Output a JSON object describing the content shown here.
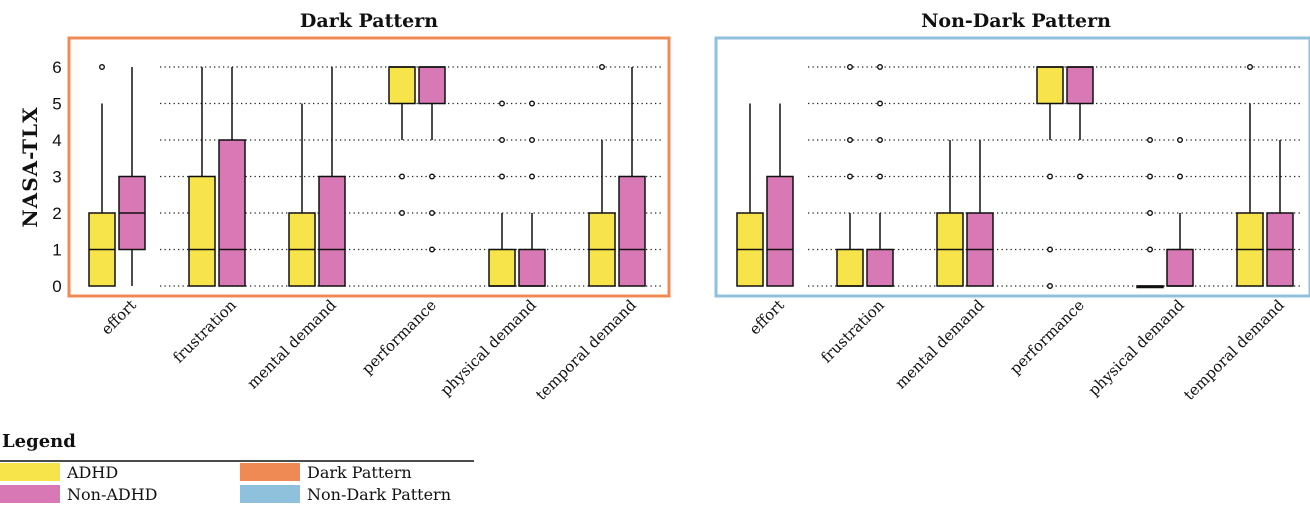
{
  "chart_data": {
    "type": "boxplot",
    "ylabel": "NASA-TLX",
    "ylim": [
      0,
      6
    ],
    "yticks": [
      0,
      1,
      2,
      3,
      4,
      5,
      6
    ],
    "grid": "dotted horizontal",
    "categories": [
      "effort",
      "frustration",
      "mental demand",
      "performance",
      "physical demand",
      "temporal demand"
    ],
    "groups": [
      {
        "name": "ADHD",
        "color": "#f7e44a"
      },
      {
        "name": "Non-ADHD",
        "color": "#d879b6"
      }
    ],
    "panels": [
      {
        "title": "Dark Pattern",
        "frame_color": "#f08a55",
        "boxes": [
          [
            {
              "min": 0,
              "q1": 0,
              "median": 1,
              "q3": 2,
              "max": 5,
              "outliers": [
                6
              ]
            },
            {
              "min": 0,
              "q1": 1,
              "median": 2,
              "q3": 3,
              "max": 6,
              "outliers": []
            }
          ],
          [
            {
              "min": 0,
              "q1": 0,
              "median": 1,
              "q3": 3,
              "max": 6,
              "outliers": []
            },
            {
              "min": 0,
              "q1": 0,
              "median": 1,
              "q3": 4,
              "max": 6,
              "outliers": []
            }
          ],
          [
            {
              "min": 0,
              "q1": 0,
              "median": 1,
              "q3": 2,
              "max": 5,
              "outliers": []
            },
            {
              "min": 0,
              "q1": 0,
              "median": 1,
              "q3": 3,
              "max": 6,
              "outliers": []
            }
          ],
          [
            {
              "min": 4,
              "q1": 5,
              "median": 6,
              "q3": 6,
              "max": 6,
              "outliers": [
                3,
                2
              ]
            },
            {
              "min": 4,
              "q1": 5,
              "median": 6,
              "q3": 6,
              "max": 6,
              "outliers": [
                3,
                2,
                1
              ]
            }
          ],
          [
            {
              "min": 0,
              "q1": 0,
              "median": 0,
              "q3": 1,
              "max": 2,
              "outliers": [
                5,
                4,
                3
              ]
            },
            {
              "min": 0,
              "q1": 0,
              "median": 0,
              "q3": 1,
              "max": 2,
              "outliers": [
                5,
                4,
                3
              ]
            }
          ],
          [
            {
              "min": 0,
              "q1": 0,
              "median": 1,
              "q3": 2,
              "max": 4,
              "outliers": [
                6
              ]
            },
            {
              "min": 0,
              "q1": 0,
              "median": 1,
              "q3": 3,
              "max": 6,
              "outliers": []
            }
          ]
        ]
      },
      {
        "title": "Non-Dark Pattern",
        "frame_color": "#8fc0dc",
        "boxes": [
          [
            {
              "min": 0,
              "q1": 0,
              "median": 1,
              "q3": 2,
              "max": 5,
              "outliers": []
            },
            {
              "min": 0,
              "q1": 0,
              "median": 1,
              "q3": 3,
              "max": 5,
              "outliers": []
            }
          ],
          [
            {
              "min": 0,
              "q1": 0,
              "median": 0,
              "q3": 1,
              "max": 2,
              "outliers": [
                6,
                4,
                3
              ]
            },
            {
              "min": 0,
              "q1": 0,
              "median": 0,
              "q3": 1,
              "max": 2,
              "outliers": [
                6,
                5,
                4,
                3
              ]
            }
          ],
          [
            {
              "min": 0,
              "q1": 0,
              "median": 1,
              "q3": 2,
              "max": 4,
              "outliers": []
            },
            {
              "min": 0,
              "q1": 0,
              "median": 1,
              "q3": 2,
              "max": 4,
              "outliers": []
            }
          ],
          [
            {
              "min": 4,
              "q1": 5,
              "median": 6,
              "q3": 6,
              "max": 6,
              "outliers": [
                3,
                1,
                0
              ]
            },
            {
              "min": 4,
              "q1": 5,
              "median": 6,
              "q3": 6,
              "max": 6,
              "outliers": [
                3
              ]
            }
          ],
          [
            {
              "min": 0,
              "q1": 0,
              "median": 0,
              "q3": 0,
              "max": 0,
              "outliers": [
                4,
                3,
                2,
                1
              ]
            },
            {
              "min": 0,
              "q1": 0,
              "median": 0,
              "q3": 1,
              "max": 2,
              "outliers": [
                4,
                3
              ]
            }
          ],
          [
            {
              "min": 0,
              "q1": 0,
              "median": 1,
              "q3": 2,
              "max": 5,
              "outliers": [
                6
              ]
            },
            {
              "min": 0,
              "q1": 0,
              "median": 1,
              "q3": 2,
              "max": 4,
              "outliers": []
            }
          ]
        ]
      }
    ],
    "legend": {
      "title": "Legend",
      "placement": "bottom-left",
      "items": [
        {
          "label": "ADHD",
          "color": "#f7e44a"
        },
        {
          "label": "Dark Pattern",
          "color": "#f08a55"
        },
        {
          "label": "Non-ADHD",
          "color": "#d879b6"
        },
        {
          "label": "Non-Dark Pattern",
          "color": "#8fc0dc"
        }
      ]
    }
  }
}
